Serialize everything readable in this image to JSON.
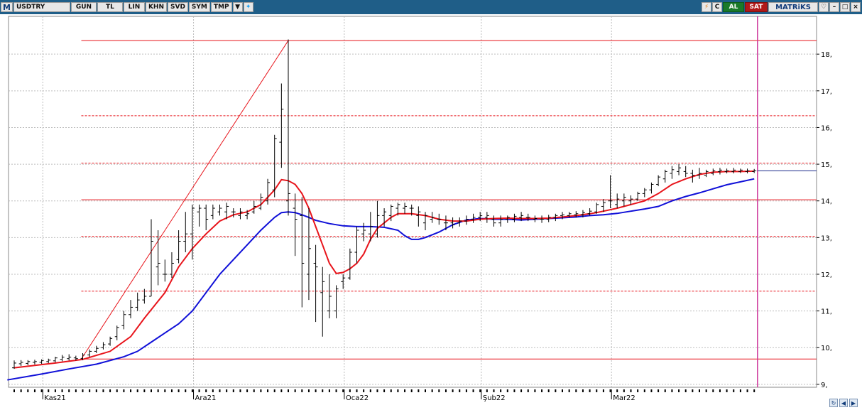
{
  "toolbar": {
    "logo": "M",
    "symbol": "USDTRY",
    "period": "GUN",
    "currency": "TL",
    "chart_type": "LIN",
    "btn_khn": "KHN",
    "btn_svd": "SVD",
    "btn_sym": "SYM",
    "btn_tmp": "TMP",
    "btn_c": "C",
    "buy_label": "AL",
    "sell_label": "SAT",
    "brand": "MATRiKS"
  },
  "colors": {
    "bar": "#000000",
    "ma_fast": "#e8141b",
    "ma_slow": "#1010d8",
    "level_line": "#e8141b",
    "cursor_line": "#cc3399",
    "grid": "#bdbdbd"
  },
  "chart_data": {
    "type": "ohlc",
    "series_names": [],
    "y_axis": {
      "ticks": [
        "9,",
        "10,",
        "11,",
        "12,",
        "13,",
        "14,",
        "15,",
        "16,",
        "17,",
        "18,"
      ],
      "ylim": [
        8.92,
        19.03
      ],
      "side": "right"
    },
    "x_axis": {
      "labels": [
        "Kas21",
        "Ara21",
        "Oca22",
        "Şub22",
        "Mar22"
      ],
      "label_bar_index": [
        5,
        27,
        49,
        69,
        88
      ]
    },
    "grid": true,
    "bars": [
      [
        9.45,
        9.65,
        9.42,
        9.58
      ],
      [
        9.56,
        9.66,
        9.5,
        9.6
      ],
      [
        9.57,
        9.66,
        9.52,
        9.62
      ],
      [
        9.6,
        9.67,
        9.54,
        9.62
      ],
      [
        9.6,
        9.68,
        9.56,
        9.65
      ],
      [
        9.62,
        9.7,
        9.58,
        9.66
      ],
      [
        9.64,
        9.75,
        9.6,
        9.72
      ],
      [
        9.68,
        9.8,
        9.63,
        9.74
      ],
      [
        9.7,
        9.82,
        9.65,
        9.74
      ],
      [
        9.72,
        9.78,
        9.65,
        9.7
      ],
      [
        9.7,
        9.85,
        9.66,
        9.8
      ],
      [
        9.8,
        9.95,
        9.75,
        9.9
      ],
      [
        9.9,
        10.05,
        9.85,
        9.98
      ],
      [
        10.0,
        10.15,
        9.95,
        10.08
      ],
      [
        10.1,
        10.3,
        10.05,
        10.25
      ],
      [
        10.3,
        10.6,
        10.2,
        10.55
      ],
      [
        10.6,
        11.0,
        10.5,
        10.9
      ],
      [
        10.9,
        11.3,
        10.8,
        11.1
      ],
      [
        11.1,
        11.5,
        11.0,
        11.3
      ],
      [
        11.3,
        11.6,
        11.2,
        11.4
      ],
      [
        11.4,
        13.5,
        11.4,
        12.9
      ],
      [
        12.2,
        13.2,
        11.7,
        12.3
      ],
      [
        12.0,
        12.4,
        11.8,
        12.0
      ],
      [
        12.0,
        12.6,
        11.9,
        12.3
      ],
      [
        12.4,
        13.2,
        12.3,
        12.9
      ],
      [
        12.9,
        13.7,
        12.6,
        13.1
      ],
      [
        13.1,
        13.9,
        12.4,
        13.8
      ],
      [
        13.7,
        13.9,
        13.3,
        13.8
      ],
      [
        13.8,
        13.9,
        13.2,
        13.5
      ],
      [
        13.6,
        13.9,
        13.5,
        13.8
      ],
      [
        13.7,
        13.9,
        13.6,
        13.8
      ],
      [
        13.7,
        13.95,
        13.5,
        13.85
      ],
      [
        13.7,
        13.8,
        13.55,
        13.7
      ],
      [
        13.6,
        13.8,
        13.5,
        13.7
      ],
      [
        13.6,
        13.75,
        13.5,
        13.65
      ],
      [
        13.7,
        14.0,
        13.65,
        13.85
      ],
      [
        13.8,
        14.2,
        13.75,
        14.1
      ],
      [
        14.0,
        14.6,
        13.9,
        14.5
      ],
      [
        14.3,
        15.8,
        14.1,
        15.7
      ],
      [
        15.6,
        17.2,
        14.9,
        16.5
      ],
      [
        14.0,
        18.4,
        13.6,
        14.2
      ],
      [
        13.8,
        14.2,
        12.5,
        13.5
      ],
      [
        13.6,
        14.1,
        11.1,
        12.3
      ],
      [
        12.0,
        13.8,
        11.3,
        12.7
      ],
      [
        12.3,
        12.8,
        10.7,
        12.2
      ],
      [
        11.5,
        12.2,
        10.3,
        11.8
      ],
      [
        11.0,
        12.0,
        10.8,
        11.4
      ],
      [
        11.0,
        11.7,
        10.8,
        11.6
      ],
      [
        11.8,
        12.0,
        11.6,
        11.9
      ],
      [
        11.9,
        12.7,
        11.85,
        12.6
      ],
      [
        12.6,
        13.3,
        12.3,
        13.2
      ],
      [
        13.1,
        13.4,
        12.9,
        13.2
      ],
      [
        13.1,
        13.7,
        12.9,
        13.3
      ],
      [
        13.1,
        14.0,
        13.0,
        13.6
      ],
      [
        13.6,
        13.8,
        13.3,
        13.7
      ],
      [
        13.6,
        13.9,
        13.45,
        13.85
      ],
      [
        13.8,
        13.95,
        13.6,
        13.9
      ],
      [
        13.8,
        13.95,
        13.65,
        13.85
      ],
      [
        13.8,
        13.9,
        13.6,
        13.8
      ],
      [
        13.6,
        13.85,
        13.3,
        13.7
      ],
      [
        13.4,
        13.7,
        13.2,
        13.6
      ],
      [
        13.5,
        13.7,
        13.4,
        13.55
      ],
      [
        13.5,
        13.65,
        13.35,
        13.5
      ],
      [
        13.4,
        13.6,
        13.2,
        13.4
      ],
      [
        13.4,
        13.55,
        13.25,
        13.35
      ],
      [
        13.4,
        13.55,
        13.3,
        13.45
      ],
      [
        13.45,
        13.6,
        13.35,
        13.5
      ],
      [
        13.5,
        13.65,
        13.4,
        13.55
      ],
      [
        13.55,
        13.7,
        13.45,
        13.6
      ],
      [
        13.55,
        13.7,
        13.4,
        13.6
      ],
      [
        13.5,
        13.6,
        13.3,
        13.4
      ],
      [
        13.4,
        13.6,
        13.3,
        13.5
      ],
      [
        13.5,
        13.6,
        13.4,
        13.55
      ],
      [
        13.5,
        13.65,
        13.42,
        13.58
      ],
      [
        13.55,
        13.7,
        13.45,
        13.6
      ],
      [
        13.55,
        13.65,
        13.45,
        13.55
      ],
      [
        13.5,
        13.6,
        13.42,
        13.52
      ],
      [
        13.5,
        13.6,
        13.4,
        13.5
      ],
      [
        13.5,
        13.62,
        13.42,
        13.55
      ],
      [
        13.55,
        13.65,
        13.45,
        13.6
      ],
      [
        13.6,
        13.7,
        13.5,
        13.62
      ],
      [
        13.6,
        13.7,
        13.55,
        13.65
      ],
      [
        13.62,
        13.72,
        13.55,
        13.65
      ],
      [
        13.62,
        13.75,
        13.55,
        13.68
      ],
      [
        13.65,
        13.8,
        13.6,
        13.72
      ],
      [
        13.7,
        13.95,
        13.65,
        13.9
      ],
      [
        13.85,
        14.05,
        13.7,
        13.95
      ],
      [
        14.0,
        14.7,
        13.8,
        14.0
      ],
      [
        13.9,
        14.2,
        13.8,
        14.05
      ],
      [
        14.0,
        14.2,
        13.85,
        14.1
      ],
      [
        14.0,
        14.15,
        13.9,
        14.05
      ],
      [
        14.05,
        14.25,
        14.0,
        14.2
      ],
      [
        14.2,
        14.35,
        14.1,
        14.3
      ],
      [
        14.3,
        14.5,
        14.2,
        14.45
      ],
      [
        14.45,
        14.7,
        14.4,
        14.65
      ],
      [
        14.6,
        14.85,
        14.5,
        14.8
      ],
      [
        14.75,
        14.95,
        14.6,
        14.85
      ],
      [
        14.8,
        15.0,
        14.7,
        14.9
      ],
      [
        14.8,
        14.95,
        14.65,
        14.75
      ],
      [
        14.75,
        14.85,
        14.5,
        14.7
      ],
      [
        14.7,
        14.9,
        14.6,
        14.75
      ],
      [
        14.7,
        14.85,
        14.65,
        14.8
      ],
      [
        14.75,
        14.88,
        14.7,
        14.82
      ],
      [
        14.8,
        14.9,
        14.72,
        14.84
      ],
      [
        14.8,
        14.88,
        14.75,
        14.82
      ],
      [
        14.8,
        14.9,
        14.75,
        14.84
      ],
      [
        14.8,
        14.88,
        14.76,
        14.84
      ],
      [
        14.8,
        14.88,
        14.75,
        14.82
      ],
      [
        14.8,
        14.87,
        14.76,
        14.82
      ]
    ],
    "ma_fast": [
      [
        0,
        9.45
      ],
      [
        6,
        9.58
      ],
      [
        10,
        9.68
      ],
      [
        14,
        9.9
      ],
      [
        17,
        10.3
      ],
      [
        19,
        10.8
      ],
      [
        22,
        11.5
      ],
      [
        24,
        12.2
      ],
      [
        26,
        12.7
      ],
      [
        28,
        13.1
      ],
      [
        30,
        13.45
      ],
      [
        32,
        13.62
      ],
      [
        34,
        13.7
      ],
      [
        36,
        13.9
      ],
      [
        38,
        14.3
      ],
      [
        39,
        14.58
      ],
      [
        40,
        14.55
      ],
      [
        41,
        14.45
      ],
      [
        42,
        14.2
      ],
      [
        43,
        13.8
      ],
      [
        44,
        13.3
      ],
      [
        45,
        12.8
      ],
      [
        46,
        12.3
      ],
      [
        47,
        12.02
      ],
      [
        48,
        12.05
      ],
      [
        49,
        12.15
      ],
      [
        50,
        12.3
      ],
      [
        51,
        12.55
      ],
      [
        52,
        12.95
      ],
      [
        53,
        13.25
      ],
      [
        54,
        13.4
      ],
      [
        55,
        13.55
      ],
      [
        56,
        13.65
      ],
      [
        58,
        13.65
      ],
      [
        60,
        13.6
      ],
      [
        62,
        13.5
      ],
      [
        64,
        13.45
      ],
      [
        66,
        13.45
      ],
      [
        68,
        13.5
      ],
      [
        70,
        13.52
      ],
      [
        72,
        13.53
      ],
      [
        74,
        13.52
      ],
      [
        76,
        13.52
      ],
      [
        78,
        13.53
      ],
      [
        80,
        13.56
      ],
      [
        82,
        13.6
      ],
      [
        84,
        13.65
      ],
      [
        85,
        13.68
      ],
      [
        86,
        13.72
      ],
      [
        88,
        13.8
      ],
      [
        90,
        13.9
      ],
      [
        92,
        14.0
      ],
      [
        94,
        14.2
      ],
      [
        96,
        14.45
      ],
      [
        98,
        14.6
      ],
      [
        100,
        14.72
      ],
      [
        102,
        14.78
      ],
      [
        104,
        14.8
      ],
      [
        106,
        14.8
      ],
      [
        108,
        14.81
      ]
    ],
    "ma_slow": [
      [
        -1,
        9.12
      ],
      [
        4,
        9.28
      ],
      [
        8,
        9.42
      ],
      [
        12,
        9.55
      ],
      [
        16,
        9.75
      ],
      [
        18,
        9.9
      ],
      [
        20,
        10.15
      ],
      [
        22,
        10.4
      ],
      [
        24,
        10.65
      ],
      [
        26,
        11.0
      ],
      [
        28,
        11.5
      ],
      [
        30,
        12.0
      ],
      [
        32,
        12.4
      ],
      [
        34,
        12.8
      ],
      [
        36,
        13.2
      ],
      [
        38,
        13.55
      ],
      [
        39,
        13.68
      ],
      [
        40,
        13.7
      ],
      [
        41,
        13.68
      ],
      [
        42,
        13.62
      ],
      [
        43,
        13.55
      ],
      [
        44,
        13.47
      ],
      [
        46,
        13.38
      ],
      [
        48,
        13.32
      ],
      [
        50,
        13.3
      ],
      [
        52,
        13.3
      ],
      [
        54,
        13.28
      ],
      [
        56,
        13.2
      ],
      [
        57,
        13.05
      ],
      [
        58,
        12.95
      ],
      [
        59,
        12.95
      ],
      [
        60,
        13.0
      ],
      [
        62,
        13.15
      ],
      [
        64,
        13.35
      ],
      [
        66,
        13.48
      ],
      [
        68,
        13.52
      ],
      [
        70,
        13.5
      ],
      [
        72,
        13.5
      ],
      [
        74,
        13.48
      ],
      [
        76,
        13.5
      ],
      [
        78,
        13.52
      ],
      [
        80,
        13.54
      ],
      [
        82,
        13.56
      ],
      [
        84,
        13.6
      ],
      [
        86,
        13.62
      ],
      [
        88,
        13.66
      ],
      [
        90,
        13.72
      ],
      [
        92,
        13.78
      ],
      [
        94,
        13.85
      ],
      [
        96,
        14.0
      ],
      [
        98,
        14.12
      ],
      [
        100,
        14.22
      ],
      [
        102,
        14.33
      ],
      [
        104,
        14.44
      ],
      [
        106,
        14.52
      ],
      [
        108,
        14.6
      ]
    ],
    "fibonacci": {
      "levels": [
        9.69,
        11.54,
        13.03,
        14.03,
        15.03,
        16.32,
        18.37
      ],
      "solid": [
        true,
        false,
        false,
        true,
        false,
        false,
        true
      ],
      "from": [
        10,
        9.69
      ],
      "to": [
        40,
        18.37
      ]
    },
    "current_value": 14.82,
    "cursor_bar_index": 109
  }
}
